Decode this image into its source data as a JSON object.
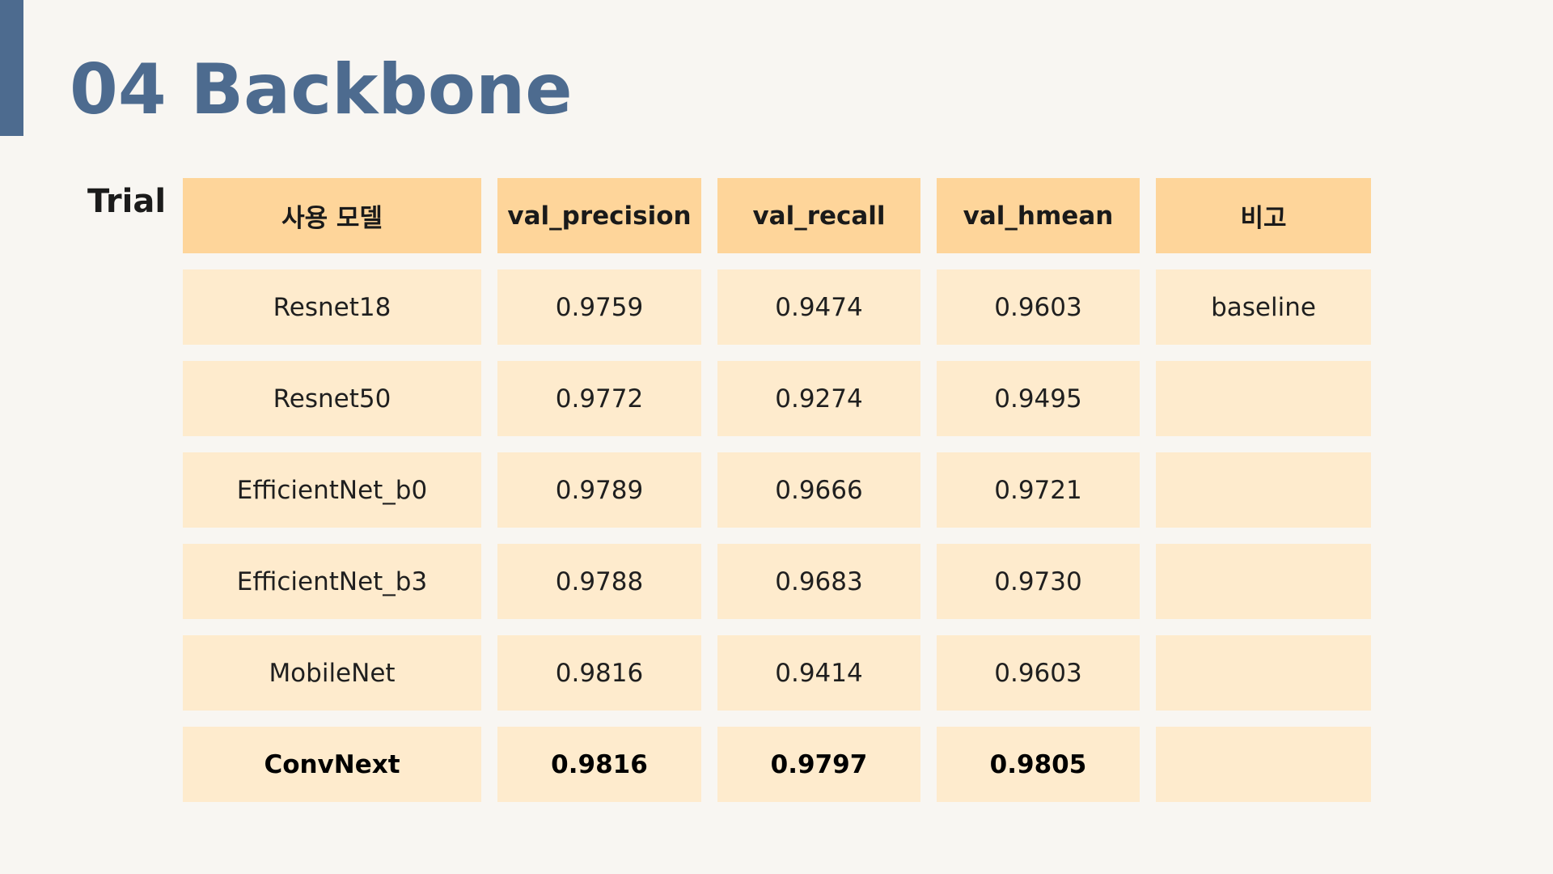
{
  "slide": {
    "title": "04 Backbone",
    "side_label": "Trial"
  },
  "table": {
    "headers": [
      "사용 모델",
      "val_precision",
      "val_recall",
      "val_hmean",
      "비고"
    ],
    "rows": [
      [
        "Resnet18",
        "0.9759",
        "0.9474",
        "0.9603",
        "baseline"
      ],
      [
        "Resnet50",
        "0.9772",
        "0.9274",
        "0.9495",
        ""
      ],
      [
        "EfficientNet_b0",
        "0.9789",
        "0.9666",
        "0.9721",
        ""
      ],
      [
        "EfficientNet_b3",
        "0.9788",
        "0.9683",
        "0.9730",
        ""
      ],
      [
        "MobileNet",
        "0.9816",
        "0.9414",
        "0.9603",
        ""
      ],
      [
        "ConvNext",
        "0.9816",
        "0.9797",
        "0.9805",
        ""
      ]
    ],
    "highlight_row": 5
  },
  "colors": {
    "accent": "#4d6b8f",
    "header_fill": "#fed59a",
    "cell_fill": "#feebcd",
    "background": "#f8f6f2"
  }
}
